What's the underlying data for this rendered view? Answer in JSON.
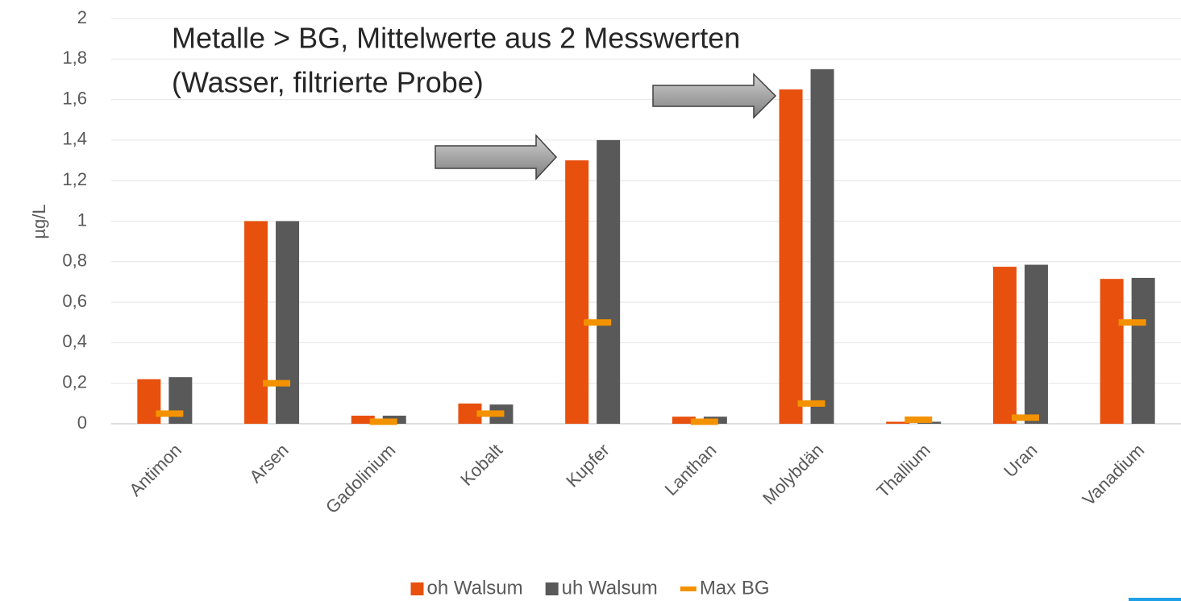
{
  "chart_data": {
    "type": "bar",
    "annotation": [
      "Metalle > BG, Mittelwerte aus 2 Messwerten",
      "(Wasser, filtrierte Probe)"
    ],
    "y_label": "µg/L",
    "categories": [
      "Antimon",
      "Arsen",
      "Gadolinium",
      "Kobalt",
      "Kupfer",
      "Lanthan",
      "Molybdän",
      "Thallium",
      "Uran",
      "Vanadium"
    ],
    "series": [
      {
        "name": "oh Walsum",
        "color": "#e8500e",
        "values": [
          0.22,
          1.0,
          0.04,
          0.1,
          1.3,
          0.035,
          1.65,
          0.01,
          0.775,
          0.715
        ]
      },
      {
        "name": "uh Walsum",
        "color": "#595959",
        "values": [
          0.23,
          1.0,
          0.04,
          0.095,
          1.4,
          0.035,
          1.75,
          0.01,
          0.785,
          0.72
        ]
      },
      {
        "name": "Max BG",
        "color": "#f39200",
        "style": "marker",
        "values": [
          0.05,
          0.2,
          0.01,
          0.05,
          0.5,
          0.01,
          0.1,
          0.02,
          0.03,
          0.5
        ]
      }
    ],
    "ylim": [
      0,
      2
    ],
    "yticks": [
      0,
      {
        "value": 0.2,
        "label": "0,2"
      },
      {
        "value": 0.4,
        "label": "0,4"
      },
      {
        "value": 0.6,
        "label": "0,6"
      },
      {
        "value": 0.8,
        "label": "0,8"
      },
      1,
      {
        "value": 1.2,
        "label": "1,2"
      },
      {
        "value": 1.4,
        "label": "1,4"
      },
      {
        "value": 1.6,
        "label": "1,6"
      },
      {
        "value": 1.8,
        "label": "1,8"
      },
      2
    ],
    "grid": true
  }
}
